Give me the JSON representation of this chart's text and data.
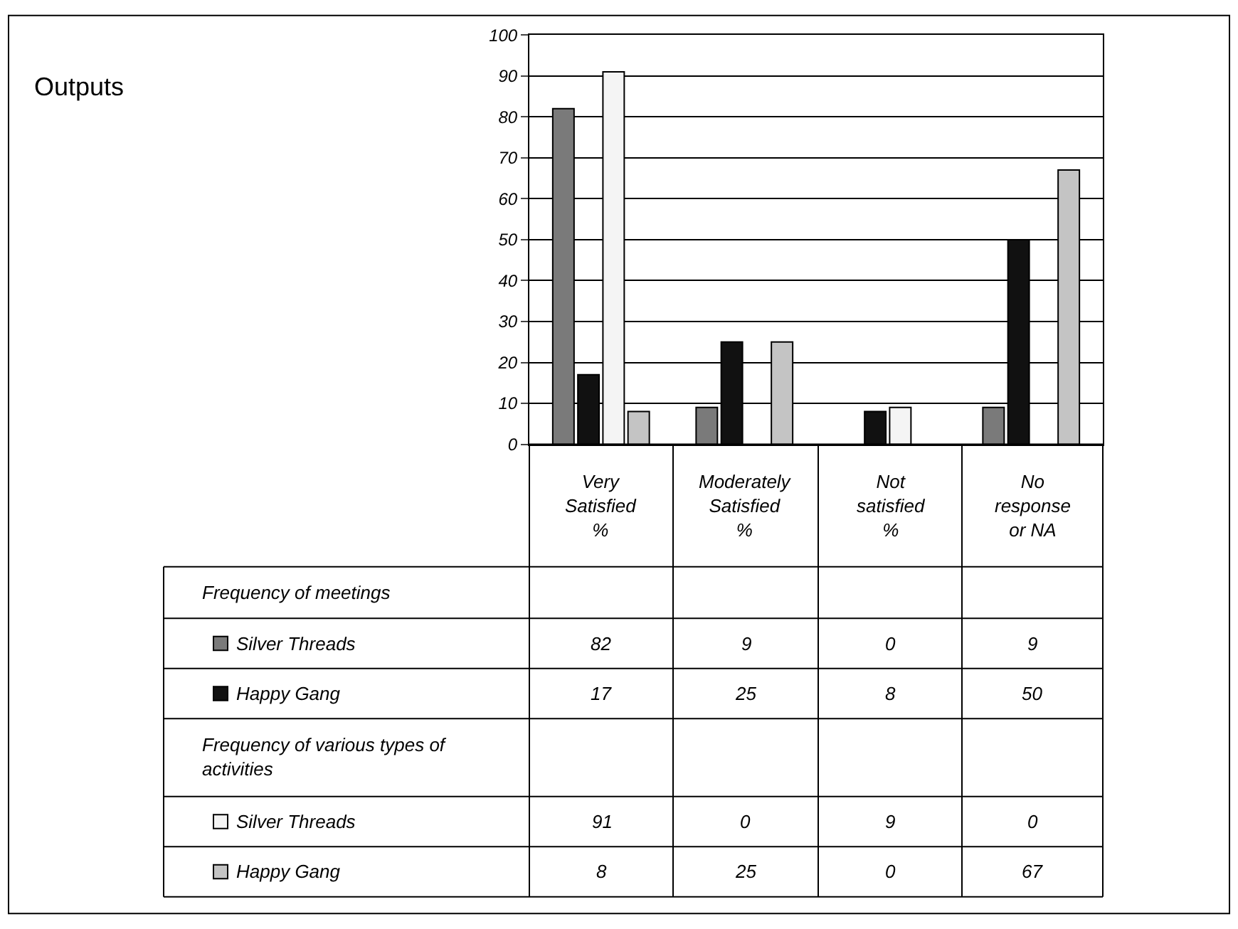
{
  "chart_data": {
    "type": "bar",
    "title": "Outputs",
    "categories": [
      "Very Satisfied %",
      "Moderately Satisfied %",
      "Not satisfied %",
      "No response or NA"
    ],
    "series": [
      {
        "name": "Silver Threads",
        "color": "#7a7a7a",
        "values": [
          82,
          9,
          0,
          9
        ]
      },
      {
        "name": "Happy Gang",
        "color": "#111111",
        "values": [
          17,
          25,
          8,
          50
        ]
      },
      {
        "name": "Silver Threads",
        "color": "#f4f4f4",
        "values": [
          91,
          0,
          9,
          0
        ]
      },
      {
        "name": "Happy Gang",
        "color": "#c4c4c4",
        "values": [
          8,
          25,
          0,
          67
        ]
      }
    ],
    "annotations": [
      "Frequency of meetings",
      "Frequency of various types of activities"
    ],
    "ylim": [
      0,
      100
    ],
    "yticks": [
      0,
      10,
      20,
      30,
      40,
      50,
      60,
      70,
      80,
      90,
      100
    ],
    "grid": "y",
    "legend": "bottom left",
    "tick_labels": "y",
    "data_labels": true
  }
}
